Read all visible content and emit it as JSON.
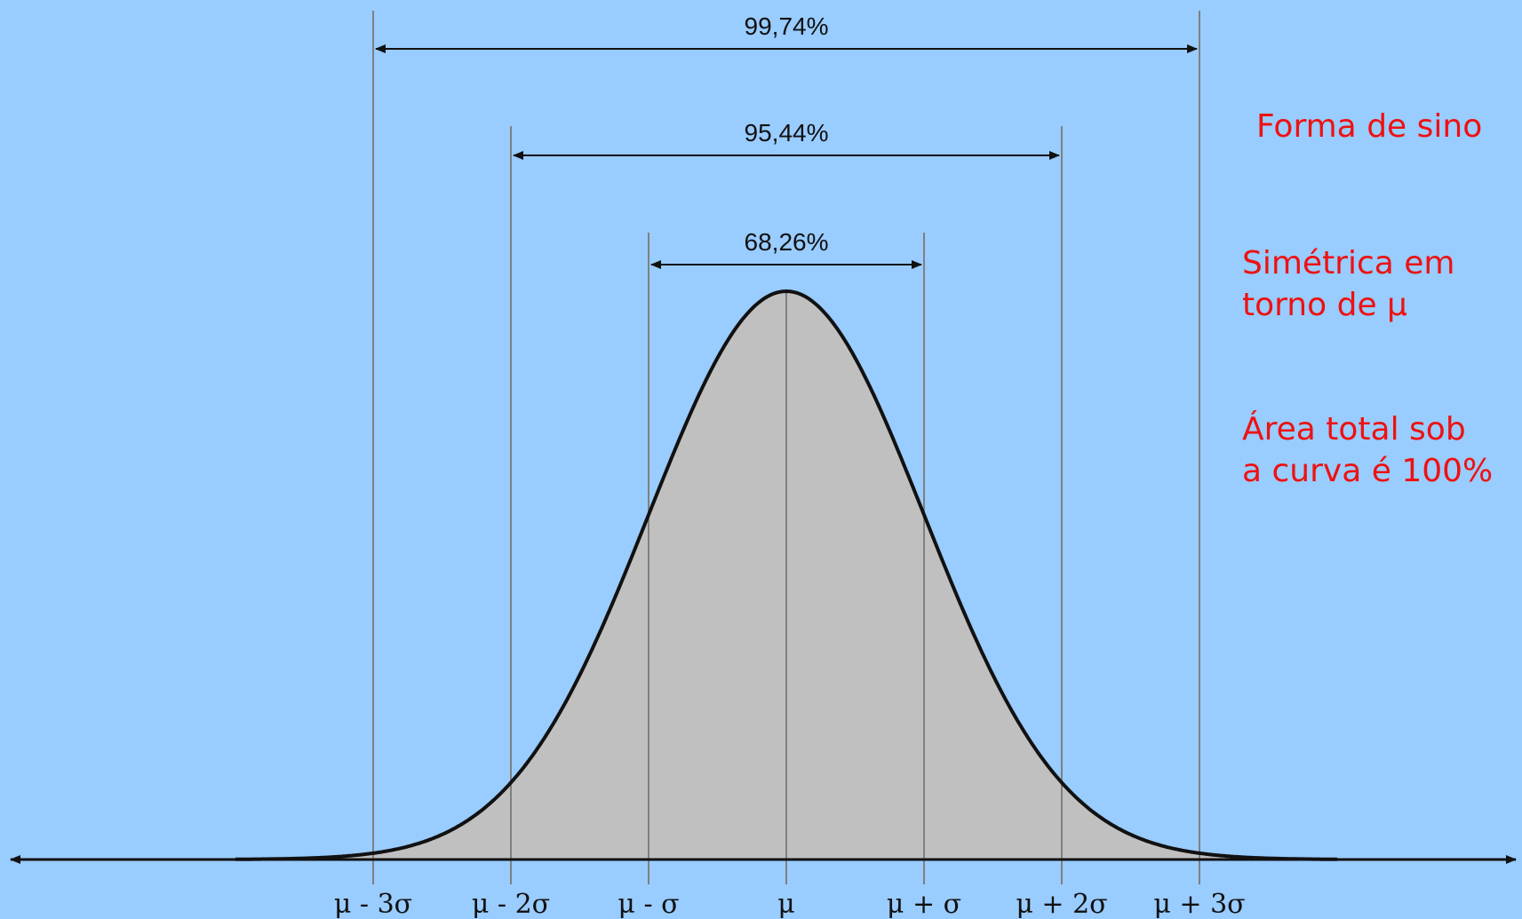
{
  "colors": {
    "background": "#99ccff",
    "curve_fill": "#c0c0c0",
    "curve_stroke": "#111111",
    "guide_line": "#808080",
    "axis": "#111111",
    "note_text": "#ee1111"
  },
  "diagram": {
    "axis_ticks": [
      {
        "k": -3,
        "label": "μ - 3σ"
      },
      {
        "k": -2,
        "label": "μ - 2σ"
      },
      {
        "k": -1,
        "label": "μ - σ"
      },
      {
        "k": 0,
        "label": "μ"
      },
      {
        "k": 1,
        "label": "μ + σ"
      },
      {
        "k": 2,
        "label": "μ + 2σ"
      },
      {
        "k": 3,
        "label": "μ + 3σ"
      }
    ],
    "intervals": [
      {
        "k": 3,
        "label": "99,74%"
      },
      {
        "k": 2,
        "label": "95,44%"
      },
      {
        "k": 1,
        "label": "68,26%"
      }
    ],
    "side_notes": [
      "Forma de sino",
      "Simétrica em\ntorno de μ",
      "Área total sob\na curva é 100%"
    ]
  }
}
